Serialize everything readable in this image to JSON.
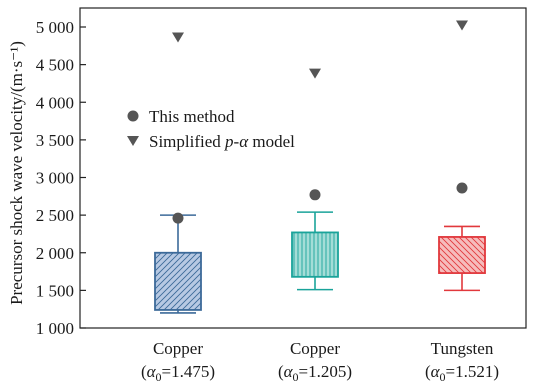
{
  "chart_data": {
    "type": "box",
    "ylabel": "Precursor shock wave velocity/(m·s⁻¹)",
    "ylim": [
      1000,
      5000
    ],
    "yticks": [
      1000,
      1500,
      2000,
      2500,
      3000,
      3500,
      4000,
      4500,
      5000
    ],
    "ytick_labels": [
      "1 000",
      "1 500",
      "2 000",
      "2 500",
      "3 000",
      "3 500",
      "4 000",
      "4 500",
      "5 000"
    ],
    "grid": false,
    "legend_position": "upper-left",
    "legend": [
      {
        "label": "This method",
        "marker": "circle"
      },
      {
        "label_parts": [
          {
            "text": "Simplified ",
            "italic": false
          },
          {
            "text": "p",
            "italic": true
          },
          {
            "text": "-",
            "italic": false
          },
          {
            "text": "α",
            "italic": true
          },
          {
            "text": " model",
            "italic": false
          }
        ],
        "marker": "triangle-down"
      }
    ],
    "categories": [
      {
        "line1": "Copper",
        "line2_prefix": "(",
        "line2_symbol": "α",
        "line2_sub": "0",
        "line2_rest": "=1.475)"
      },
      {
        "line1": "Copper",
        "line2_prefix": "(",
        "line2_symbol": "α",
        "line2_sub": "0",
        "line2_rest": "=1.205)"
      },
      {
        "line1": "Tungsten",
        "line2_prefix": "(",
        "line2_symbol": "α",
        "line2_sub": "0",
        "line2_rest": "=1.521)"
      }
    ],
    "boxes": [
      {
        "whisker_low": 1200,
        "q1": 1240,
        "q3": 2000,
        "whisker_high": 2500,
        "this_method": 2460,
        "simplified_model": 4860,
        "color": "#3c6a99",
        "fill": "#b7c9e3",
        "hatch": "diag-down"
      },
      {
        "whisker_low": 1510,
        "q1": 1680,
        "q3": 2270,
        "whisker_high": 2540,
        "this_method": 2770,
        "simplified_model": 4380,
        "color": "#1aa39a",
        "fill": "#a4ddd7",
        "hatch": "vertical"
      },
      {
        "whisker_low": 1500,
        "q1": 1730,
        "q3": 2210,
        "whisker_high": 2350,
        "this_method": 2860,
        "simplified_model": 5020,
        "color": "#e1383c",
        "fill": "#f6bcbc",
        "hatch": "diag-up"
      }
    ],
    "marker_color": "#555555"
  }
}
